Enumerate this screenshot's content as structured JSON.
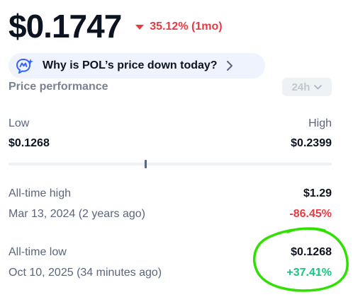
{
  "header": {
    "price": "$0.1747",
    "change": "35.12% (1mo)",
    "change_direction": "down",
    "change_color": "#ea3943"
  },
  "ai_prompt": {
    "icon": "ai-sparkle-icon",
    "text": "Why is POL’s price down today?"
  },
  "performance": {
    "title": "Price performance",
    "range": "24h",
    "low_label": "Low",
    "low_value": "$0.1268",
    "high_label": "High",
    "high_value": "$0.2399",
    "current_position_fraction": 0.42
  },
  "all_time_high": {
    "label": "All-time high",
    "value": "$1.29",
    "date": "Mar 13, 2024 (2 years ago)",
    "change": "-86.45%",
    "change_color": "#ea3943"
  },
  "all_time_low": {
    "label": "All-time low",
    "value": "$0.1268",
    "date": "Oct 10, 2025 (34 minutes ago)",
    "change": "+37.41%",
    "change_color": "#16c784"
  },
  "annotation": {
    "type": "hand-drawn circle",
    "color": "#2fe000"
  }
}
